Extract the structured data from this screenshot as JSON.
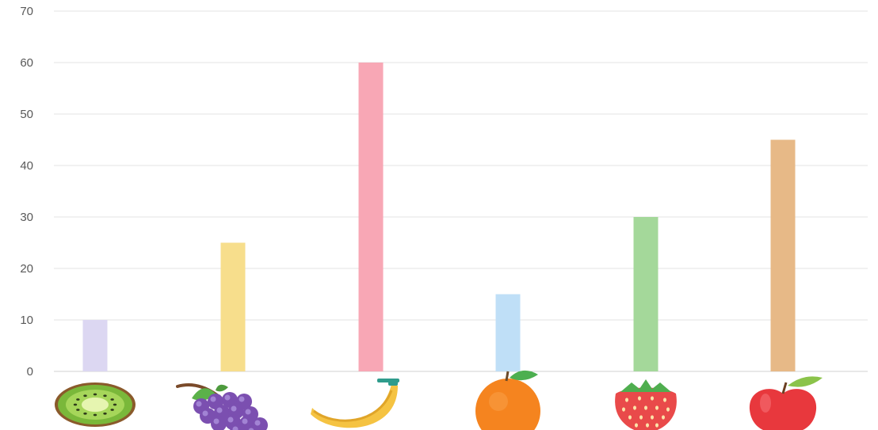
{
  "chart_data": {
    "type": "bar",
    "categories": [
      "kiwi",
      "grapes",
      "banana",
      "orange",
      "strawberry",
      "apple"
    ],
    "category_icons": [
      "kiwi-icon",
      "grapes-icon",
      "banana-icon",
      "orange-icon",
      "strawberry-icon",
      "apple-icon"
    ],
    "values": [
      10,
      25,
      60,
      15,
      30,
      45
    ],
    "bar_colors": [
      "#dcd7f2",
      "#f7de8c",
      "#f8a7b5",
      "#bfdff7",
      "#a4d89a",
      "#e7b987"
    ],
    "ylim": [
      0,
      70
    ],
    "yticks": [
      0,
      10,
      20,
      30,
      40,
      50,
      60,
      70
    ],
    "grid": true,
    "legend": "none"
  }
}
